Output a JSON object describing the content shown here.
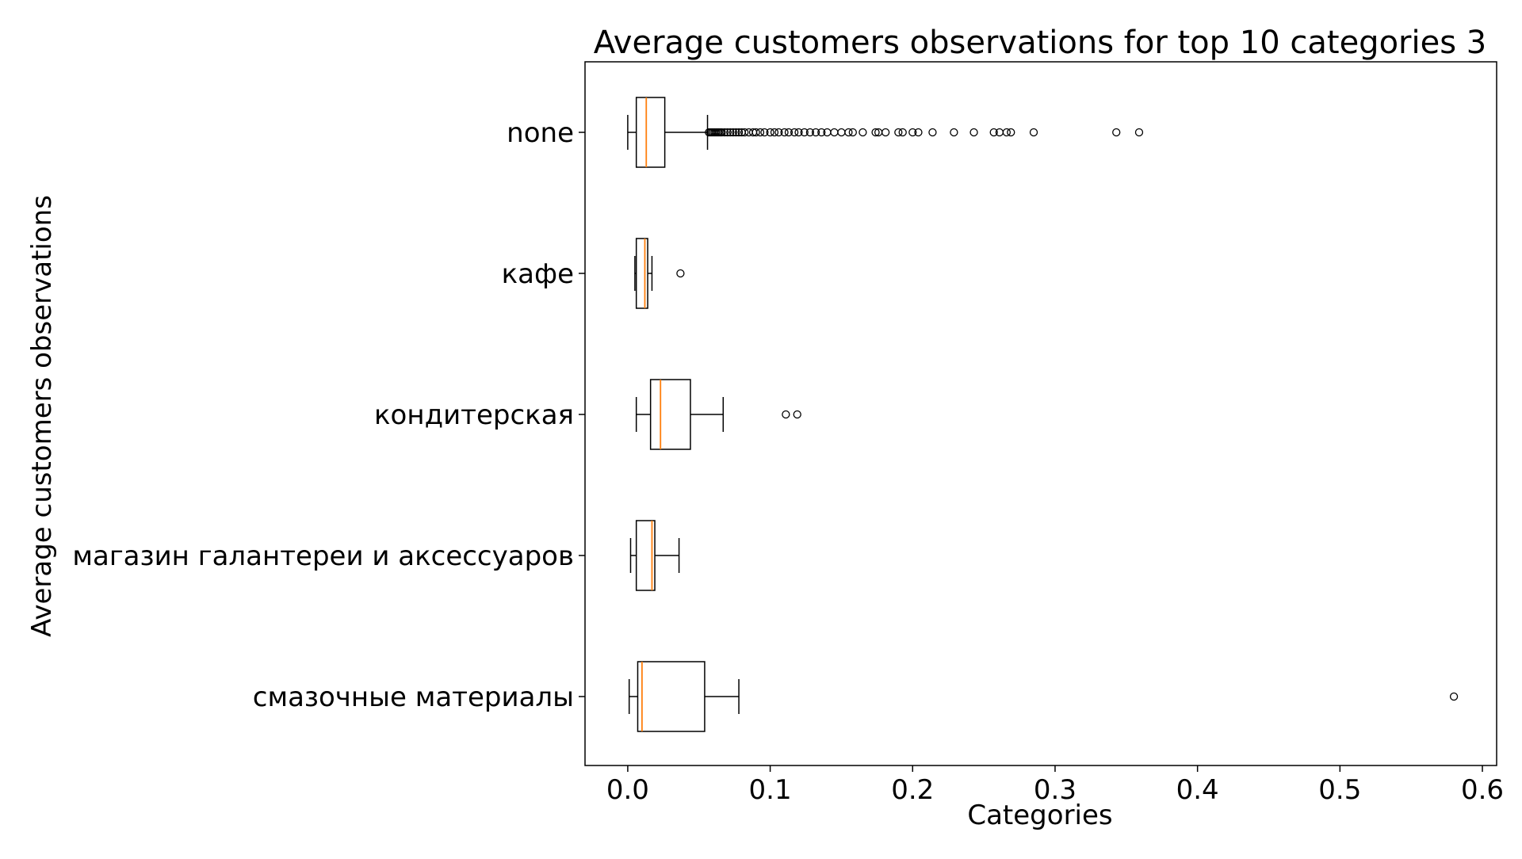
{
  "chart_data": {
    "type": "boxplot",
    "orientation": "horizontal",
    "title": "Average customers observations for top 10 categories 3",
    "xlabel": "Categories",
    "ylabel": "Average customers observations",
    "xlim": [
      -0.03,
      0.61
    ],
    "x_ticks": [
      0.0,
      0.1,
      0.2,
      0.3,
      0.4,
      0.5,
      0.6
    ],
    "x_tick_labels": [
      "0.0",
      "0.1",
      "0.2",
      "0.3",
      "0.4",
      "0.5",
      "0.6"
    ],
    "grid": false,
    "colors": {
      "box": "#000000",
      "median": "#ff7f0e",
      "outlier": "#000000",
      "background": "#ffffff"
    },
    "categories": [
      "none",
      "кафе",
      "кондитерская",
      "магазин галантереи и аксессуаров",
      "смазочные материалы"
    ],
    "boxes": [
      {
        "label": "none",
        "whisker_low": 0.0,
        "q1": 0.006,
        "median": 0.013,
        "q3": 0.026,
        "whisker_high": 0.056,
        "outliers": [
          0.057,
          0.058,
          0.059,
          0.06,
          0.061,
          0.062,
          0.063,
          0.064,
          0.065,
          0.066,
          0.068,
          0.07,
          0.072,
          0.074,
          0.076,
          0.078,
          0.08,
          0.082,
          0.085,
          0.088,
          0.09,
          0.093,
          0.096,
          0.1,
          0.103,
          0.106,
          0.11,
          0.113,
          0.117,
          0.12,
          0.124,
          0.128,
          0.132,
          0.136,
          0.14,
          0.145,
          0.15,
          0.155,
          0.158,
          0.165,
          0.174,
          0.176,
          0.181,
          0.19,
          0.193,
          0.2,
          0.204,
          0.214,
          0.229,
          0.243,
          0.257,
          0.261,
          0.266,
          0.269,
          0.285,
          0.343,
          0.359
        ]
      },
      {
        "label": "кафе",
        "whisker_low": 0.005,
        "q1": 0.006,
        "median": 0.012,
        "q3": 0.014,
        "whisker_high": 0.017,
        "outliers": [
          0.037
        ]
      },
      {
        "label": "кондитерская",
        "whisker_low": 0.006,
        "q1": 0.016,
        "median": 0.023,
        "q3": 0.044,
        "whisker_high": 0.067,
        "outliers": [
          0.111,
          0.119
        ]
      },
      {
        "label": "магазин галантереи и аксессуаров",
        "whisker_low": 0.002,
        "q1": 0.006,
        "median": 0.017,
        "q3": 0.019,
        "whisker_high": 0.036,
        "outliers": []
      },
      {
        "label": "смазочные материалы",
        "whisker_low": 0.001,
        "q1": 0.007,
        "median": 0.01,
        "q3": 0.054,
        "whisker_high": 0.078,
        "outliers": [
          0.58
        ]
      }
    ]
  }
}
